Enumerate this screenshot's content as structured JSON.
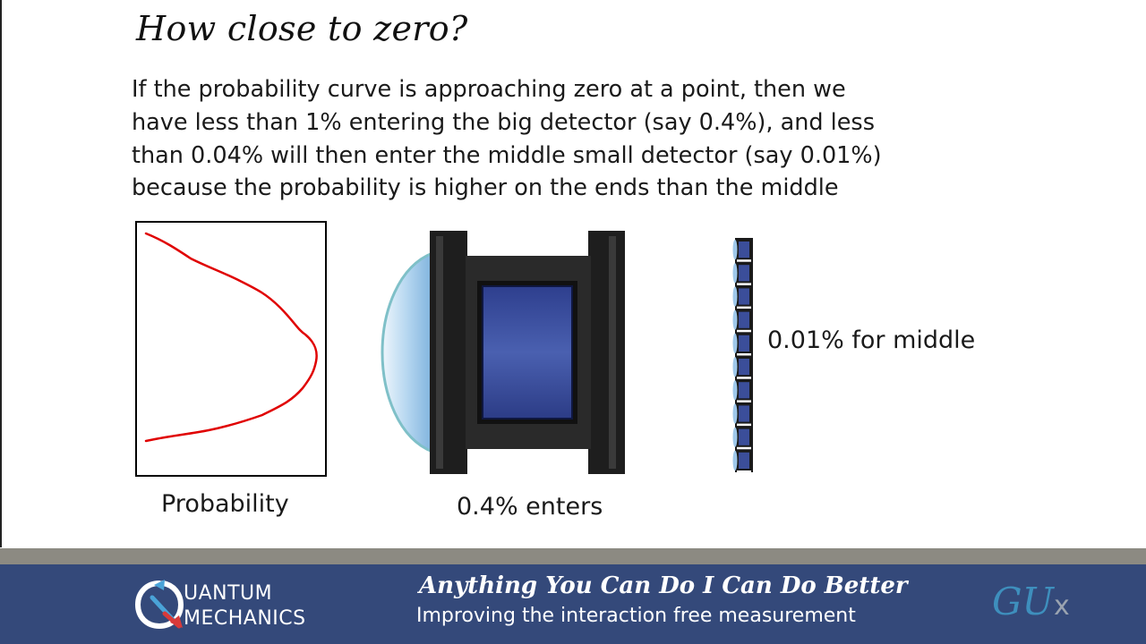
{
  "slide": {
    "title": "How close to zero?",
    "body_lines": [
      "If the probability curve is approaching zero at a point, then we",
      "have less than 1% entering the big detector (say 0.4%), and less",
      "than 0.04% will then enter the middle small detector (say 0.01%)",
      "because the probability is higher on the ends than the middle"
    ],
    "probability_label": "Probability",
    "big_detector_label": "0.4% enters",
    "middle_label": "0.01% for middle"
  },
  "colors": {
    "curve": "#e00000",
    "detector_body": "#1a1a1a",
    "detector_window": "#3b4e9a",
    "lens": "#9fc8ea",
    "footer_bg": "#34497a",
    "footer_band": "#8c8a82",
    "gux_accent": "#3e8fbd"
  },
  "footer": {
    "logo_line1": "UANTUM",
    "logo_line2": "MECHANICS",
    "title": "Anything You Can Do I Can Do Better",
    "subtitle": "Improving the interaction free measurement",
    "brand_main": "GU",
    "brand_x": "x"
  }
}
